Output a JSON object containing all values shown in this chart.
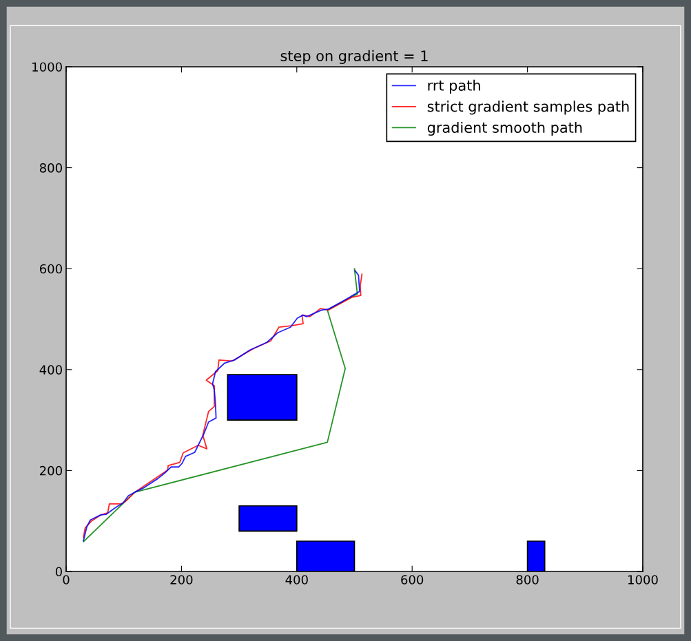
{
  "chart_data": {
    "type": "line",
    "title": "step on gradient = 1",
    "xlim": [
      0,
      1000
    ],
    "ylim": [
      0,
      1000
    ],
    "xticks": [
      0,
      200,
      400,
      600,
      800,
      1000
    ],
    "yticks": [
      0,
      200,
      400,
      600,
      800,
      1000
    ],
    "legend": "top right",
    "series": [
      {
        "name": "rrt path",
        "color": "#0000ff",
        "x": [
          30,
          36,
          42,
          60,
          69,
          86,
          99,
          108,
          119,
          135,
          159,
          171,
          182,
          195,
          201,
          207,
          223,
          229,
          239,
          247,
          260,
          259,
          257,
          254,
          259,
          275,
          292,
          319,
          348,
          367,
          389,
          401,
          411,
          417,
          443,
          455,
          479,
          509,
          507,
          501
        ],
        "values": [
          61,
          89,
          102,
          112,
          113,
          127,
          136,
          150,
          157,
          166,
          184,
          195,
          207,
          207,
          214,
          228,
          236,
          250,
          273,
          296,
          304,
          332,
          359,
          372,
          396,
          413,
          419,
          439,
          454,
          473,
          484,
          502,
          508,
          505,
          518,
          520,
          535,
          555,
          587,
          596
        ]
      },
      {
        "name": "strict gradient samples path",
        "color": "#ff0000",
        "x": [
          30,
          33,
          44,
          60,
          72,
          75,
          96,
          105,
          119,
          176,
          177,
          197,
          203,
          229,
          244,
          237,
          247,
          257,
          257,
          243,
          263,
          265,
          288,
          324,
          355,
          369,
          391,
          411,
          409,
          423,
          441,
          455,
          495,
          511,
          510,
          513
        ],
        "values": [
          68,
          86,
          100,
          112,
          116,
          134,
          134,
          141,
          157,
          201,
          210,
          216,
          235,
          250,
          243,
          270,
          317,
          327,
          368,
          379,
          398,
          419,
          417,
          441,
          457,
          484,
          487,
          491,
          508,
          505,
          521,
          518,
          543,
          547,
          566,
          589
        ]
      },
      {
        "name": "gradient smooth path",
        "color": "#008000",
        "x": [
          30,
          119,
          453,
          484,
          453,
          505,
          500
        ],
        "values": [
          59,
          157,
          256,
          402,
          518,
          550,
          600
        ]
      },
      {
        "type": "area",
        "color": "#0000ff",
        "x": [
          280,
          400,
          400,
          280
        ],
        "values": [
          300,
          300,
          390,
          390
        ]
      },
      {
        "type": "area",
        "color": "#0000ff",
        "x": [
          300,
          400,
          400,
          300
        ],
        "values": [
          80,
          80,
          130,
          130
        ]
      },
      {
        "type": "area",
        "color": "#0000ff",
        "x": [
          400,
          500,
          500,
          400
        ],
        "values": [
          0,
          0,
          60,
          60
        ]
      },
      {
        "type": "area",
        "color": "#0000ff",
        "x": [
          800,
          830,
          830,
          800
        ],
        "values": [
          0,
          0,
          60,
          60
        ]
      }
    ]
  }
}
